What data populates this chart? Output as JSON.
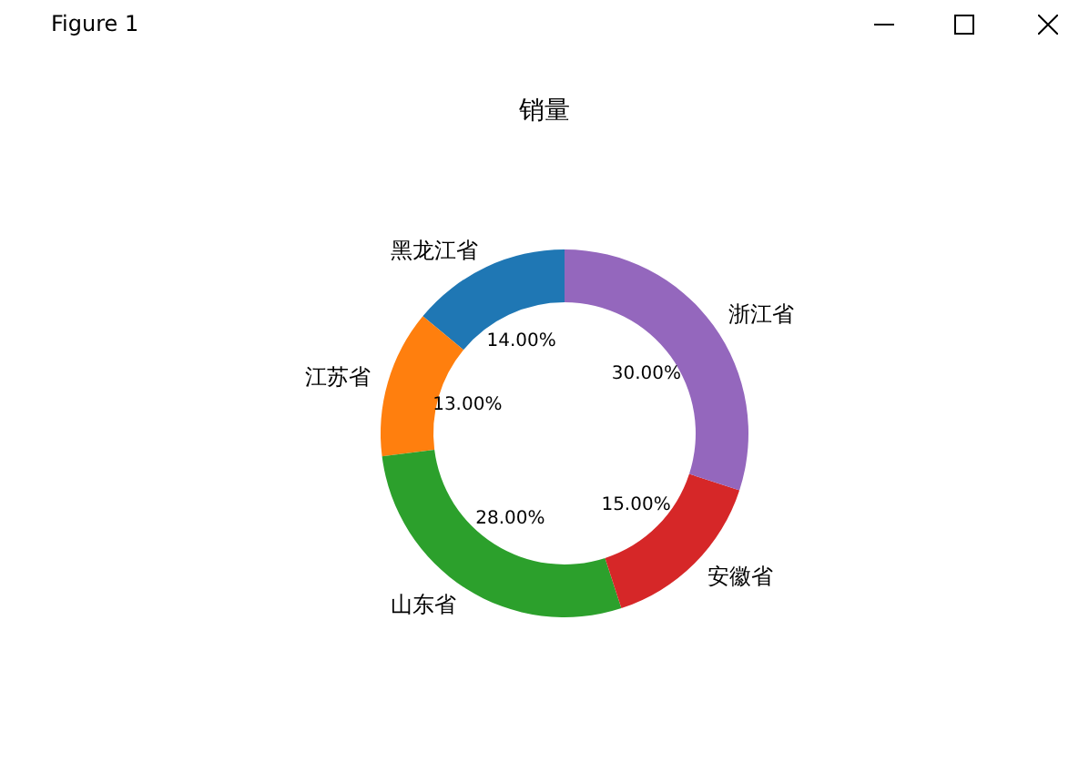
{
  "chart_data": {
    "type": "donut",
    "title": "销量",
    "categories": [
      "黑龙江省",
      "江苏省",
      "山东省",
      "安徽省",
      "浙江省"
    ],
    "values": [
      14,
      13,
      28,
      15,
      30
    ],
    "colors": [
      "#1f77b4",
      "#ff7f0e",
      "#2ca02c",
      "#d62728",
      "#9467bd"
    ],
    "value_labels": [
      "14.00%",
      "13.00%",
      "28.00%",
      "15.00%",
      "30.00%"
    ],
    "annotations": [
      "Figure 1"
    ]
  }
}
